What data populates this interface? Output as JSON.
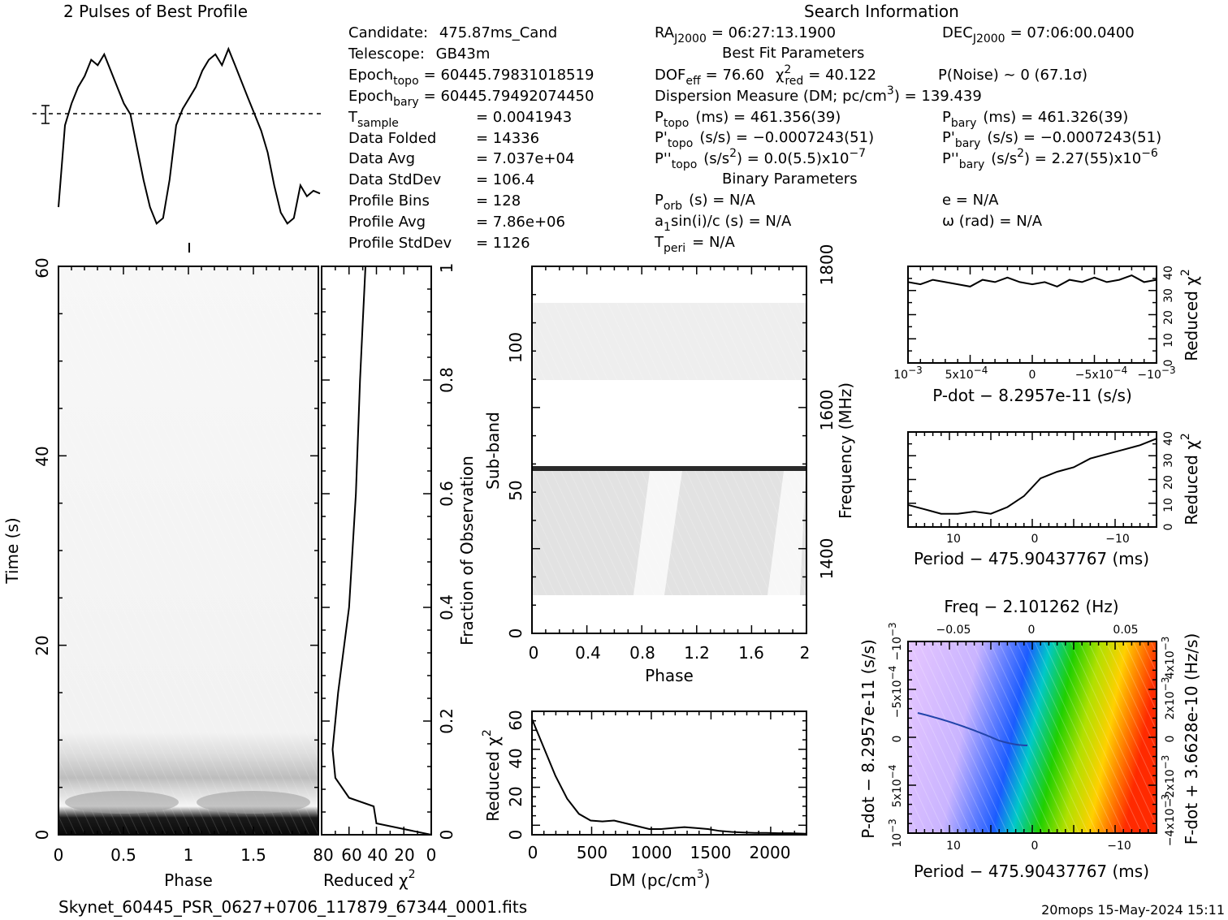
{
  "header": {
    "profile_title": "2 Pulses of Best Profile",
    "search_title": "Search Information",
    "best_fit_title": "Best Fit Parameters",
    "binary_title": "Binary Parameters",
    "footer_file": "Skynet_60445_PSR_0627+0706_117879_67344_0001.fits",
    "footer_stamp": "20mops 15-May-2024 15:11"
  },
  "info_left": [
    {
      "label": "Candidate:",
      "value": "475.87ms_Cand"
    },
    {
      "label": "Telescope:",
      "value": "GB43m"
    },
    {
      "label": "Epoch",
      "sub": "topo",
      "value": "= 60445.79831018519"
    },
    {
      "label": "Epoch",
      "sub": "bary",
      "value": "= 60445.79492074450"
    },
    {
      "label": "T",
      "sub": "sample",
      "value": "=   0.0041943"
    },
    {
      "label": "Data Folded",
      "value": "=   14336"
    },
    {
      "label": "Data Avg",
      "value": "=   7.037e+04"
    },
    {
      "label": "Data StdDev",
      "value": "=   106.4"
    },
    {
      "label": "Profile Bins",
      "value": "=   128"
    },
    {
      "label": "Profile Avg",
      "value": "=   7.86e+06"
    },
    {
      "label": "Profile StdDev",
      "value": "=   1126"
    }
  ],
  "search": {
    "ra": "RA",
    "ra_sub": "J2000",
    "ra_val": "= 06:27:13.1900",
    "dec": "DEC",
    "dec_sub": "J2000",
    "dec_val": "= 07:06:00.0400",
    "dof": "DOF",
    "dof_sub": "eff",
    "dof_val": "= 76.60",
    "chi": "χ",
    "chi_sup": "2",
    "chi_sub": "red",
    "chi_val": "= 40.122",
    "pnoise": "P(Noise) ~ 0    (67.1σ)",
    "dm": "Dispersion Measure (DM; pc/cm",
    "dm_sup": "3",
    "dm_val": ") = 139.439",
    "ptopo": "P",
    "ptopo_sub": "topo",
    "ptopo_val": "(ms) =  461.356(39)",
    "pbary": "P",
    "pbary_sub": "bary",
    "pbary_val": "(ms) =  461.326(39)",
    "pdtopo": "P'",
    "pdtopo_sub": "topo",
    "pdtopo_val": "(s/s) = −0.0007243(51)",
    "pdbary": "P'",
    "pdbary_sub": "bary",
    "pdbary_val": "(s/s) = −0.0007243(51)",
    "pddtopo": "P''",
    "pddtopo_sub": "topo",
    "pddtopo_val": "(s/s",
    "pddtopo_sup": "2",
    "pddtopo_val2": ") = 0.0(5.5)x10",
    "pddtopo_exp": "−7",
    "pddbary": "P''",
    "pddbary_sub": "bary",
    "pddbary_val": "(s/s",
    "pddbary_sup": "2",
    "pddbary_val2": ") =  2.27(55)x10",
    "pddbary_exp": "−6",
    "porb": "P",
    "porb_sub": "orb",
    "porb_val": "(s) = N/A",
    "ecc": "e = N/A",
    "asini": "a",
    "asini_sub": "1",
    "asini_val": "sin(i)/c (s) = N/A",
    "omega": "ω (rad) = N/A",
    "tperi": "T",
    "tperi_sub": "peri",
    "tperi_val": "= N/A"
  },
  "chart_data": [
    {
      "type": "line",
      "name": "pulse-profile",
      "title": "2 Pulses of Best Profile",
      "x": [
        0.0,
        0.05,
        0.1,
        0.15,
        0.2,
        0.25,
        0.3,
        0.35,
        0.4,
        0.45,
        0.5,
        0.55,
        0.6,
        0.65,
        0.7,
        0.75,
        0.8,
        0.85,
        0.9,
        0.95,
        1.0,
        1.05,
        1.1,
        1.15,
        1.2,
        1.25,
        1.3,
        1.35,
        1.4,
        1.45,
        1.5,
        1.55,
        1.6,
        1.65,
        1.7,
        1.75,
        1.8,
        1.85,
        1.9,
        1.95,
        2.0
      ],
      "y": [
        -1.3,
        0.2,
        0.6,
        0.9,
        1.1,
        1.4,
        1.3,
        1.5,
        1.2,
        0.9,
        0.6,
        0.4,
        -0.2,
        -0.8,
        -1.3,
        -1.6,
        -1.5,
        -0.8,
        0.2,
        0.5,
        0.7,
        0.9,
        1.2,
        1.4,
        1.5,
        1.3,
        1.6,
        1.3,
        1.0,
        0.7,
        0.4,
        0.1,
        -0.3,
        -0.9,
        -1.4,
        -1.6,
        -1.5,
        -0.9,
        -1.1,
        -1.0,
        -1.05
      ],
      "ylim": [
        -1.7,
        1.9
      ],
      "mean_line": 0.1
    },
    {
      "type": "heatmap",
      "name": "phase-time",
      "xlabel": "Phase",
      "ylabel": "Time (s)",
      "xlim": [
        0,
        2
      ],
      "ylim": [
        0,
        60
      ],
      "xticks": [
        0,
        0.5,
        1,
        1.5
      ],
      "yticks": [
        0,
        20,
        40,
        60
      ],
      "secondary_ylabel": "Fraction of Observation",
      "secondary_yticks": [
        0,
        0.2,
        0.4,
        0.6,
        0.8,
        1
      ]
    },
    {
      "type": "line",
      "name": "time-chi2",
      "xlabel": "Reduced χ",
      "xlabel_sup": "2",
      "xlim": [
        80,
        0
      ],
      "xticks": [
        80,
        60,
        40,
        20,
        0
      ],
      "ylim": [
        0,
        1
      ],
      "x": [
        0,
        40,
        42,
        60,
        70,
        72,
        68,
        60,
        55,
        52,
        50,
        48
      ],
      "y": [
        0.0,
        0.02,
        0.05,
        0.065,
        0.1,
        0.15,
        0.25,
        0.4,
        0.6,
        0.8,
        0.9,
        1.0
      ]
    },
    {
      "type": "heatmap",
      "name": "phase-subband",
      "xlabel": "Phase",
      "ylabel": "Sub-band",
      "xlim": [
        0,
        2
      ],
      "ylim": [
        0,
        128
      ],
      "xticks": [
        0,
        0.4,
        0.8,
        1.2,
        1.6,
        2
      ],
      "yticks": [
        0,
        50,
        100
      ],
      "secondary_ylabel": "Frequency (MHz)",
      "secondary_yticks": [
        1400,
        1600,
        1800
      ]
    },
    {
      "type": "line",
      "name": "dm-chi2",
      "xlabel": "DM (pc/cm",
      "xlabel_sup": "3",
      "ylabel": "Reduced χ",
      "ylabel_sup": "2",
      "xlim": [
        0,
        2340
      ],
      "ylim": [
        0,
        65
      ],
      "xticks": [
        0,
        500,
        1000,
        1500,
        2000
      ],
      "yticks": [
        0,
        20,
        40,
        60
      ],
      "x": [
        0,
        100,
        200,
        300,
        400,
        500,
        600,
        700,
        800,
        900,
        1000,
        1100,
        1200,
        1300,
        1400,
        1500,
        1600,
        1700,
        1800,
        1900,
        2000,
        2100,
        2200,
        2340
      ],
      "y": [
        61,
        46,
        31,
        19,
        11,
        7.5,
        7,
        7.5,
        6,
        4.5,
        3,
        3,
        3.5,
        4,
        3.5,
        3,
        2,
        1.5,
        1.2,
        1,
        1,
        0.8,
        0.8,
        0.5
      ]
    },
    {
      "type": "line",
      "name": "pdot-chi2",
      "xlabel": "P-dot − 8.2957e-11 (s/s)",
      "ylabel": "Reduced χ",
      "ylabel_sup": "2",
      "xlim": [
        0.001,
        -0.001
      ],
      "ylim": [
        0,
        43
      ],
      "yticks": [
        0,
        10,
        20,
        30,
        40
      ],
      "x": [
        0.001,
        0.0009,
        0.0008,
        0.0007,
        0.0006,
        0.0005,
        0.0004,
        0.0003,
        0.0002,
        0.0001,
        0.0,
        -0.0001,
        -0.0002,
        -0.0003,
        -0.0004,
        -0.0005,
        -0.0006,
        -0.0007,
        -0.0008,
        -0.0009,
        -0.001
      ],
      "y": [
        36,
        35,
        37,
        36,
        35,
        34,
        37,
        36,
        38,
        36,
        35,
        36,
        34,
        37,
        36,
        38,
        36,
        37,
        39,
        36,
        37
      ]
    },
    {
      "type": "line",
      "name": "period-chi2",
      "xlabel": "Period − 475.90437767 (ms)",
      "ylabel": "Reduced χ",
      "ylabel_sup": "2",
      "xlim": [
        15,
        -15
      ],
      "ylim": [
        0,
        43
      ],
      "xticks": [
        10,
        0,
        -10
      ],
      "yticks": [
        0,
        10,
        20,
        30,
        40
      ],
      "x": [
        15,
        13,
        11,
        9,
        7,
        5,
        3,
        1,
        0,
        -1,
        -3,
        -5,
        -7,
        -9,
        -11,
        -13,
        -15
      ],
      "y": [
        10,
        8,
        6,
        6,
        7,
        6,
        9,
        14,
        18,
        22,
        25,
        27,
        31,
        33,
        35,
        37,
        40
      ]
    },
    {
      "type": "heatmap",
      "name": "period-pdot",
      "title": "Freq − 2.101262 (Hz)",
      "xlabel": "Period − 475.90437767 (ms)",
      "ylabel": "P-dot − 8.2957e-11 (s/s)",
      "secondary_ylabel": "F-dot + 3.6628e-10 (Hz/s)",
      "xticks": [
        10,
        0,
        -10
      ],
      "top_xticks": [
        -0.05,
        0,
        0.05
      ],
      "colormap": [
        "#e8c8ff",
        "#c0a8ff",
        "#5a7cff",
        "#1060ff",
        "#00c8c8",
        "#00d000",
        "#a0e000",
        "#ffd000",
        "#ff7000",
        "#ff2000"
      ]
    }
  ],
  "ticks": {
    "phase_time_x": [
      "0",
      "0.5",
      "1",
      "1.5"
    ],
    "phase_time_y": [
      "0",
      "20",
      "40",
      "60"
    ],
    "chi_time_x": [
      "80",
      "60",
      "40",
      "20",
      "0"
    ],
    "frac_obs": [
      "0",
      "0.2",
      "0.4",
      "0.6",
      "0.8",
      "1"
    ],
    "subband_y": [
      "0",
      "50",
      "100"
    ],
    "subband_x": [
      "0",
      "0.4",
      "0.8",
      "1.2",
      "1.6",
      "2"
    ],
    "freq_y": [
      "1400",
      "1600",
      "1800"
    ],
    "dm_x": [
      "0",
      "500",
      "1000",
      "1500",
      "2000"
    ],
    "dm_y": [
      "0",
      "20",
      "40",
      "60"
    ],
    "pdot_x": [
      "10",
      "5x10",
      "0",
      "−5x10",
      "−10"
    ],
    "pdot_x_exp": [
      "−3",
      "−4",
      "",
      "−4",
      "−3"
    ],
    "chi_y": [
      "0",
      "10",
      "20",
      "30",
      "40"
    ],
    "period_x": [
      "10",
      "0",
      "−10"
    ],
    "freq_top": [
      "−0.05",
      "0",
      "0.05"
    ],
    "ppdot_left": [
      "10",
      "5x10",
      "0",
      "−5x10",
      "−10"
    ],
    "ppdot_left_exp": [
      "−3",
      "−4",
      "",
      "−4",
      "−3"
    ],
    "ppdot_right": [
      "−4x10",
      "−2x10",
      "0",
      "2x10",
      "4x10"
    ],
    "ppdot_right_exp": [
      "−3",
      "−3",
      "",
      "−3",
      "−3"
    ]
  },
  "axis_labels": {
    "phase": "Phase",
    "time": "Time (s)",
    "reduced_chi": "Reduced χ",
    "chi_sup": "2",
    "fraction": "Fraction of Observation",
    "subband": "Sub-band",
    "frequency": "Frequency (MHz)",
    "dm": "DM (pc/cm",
    "dm_sup": "3",
    "dm_close": ")",
    "pdot": "P-dot − 8.2957e-11 (s/s)",
    "period": "Period − 475.90437767 (ms)",
    "freq_top": "Freq − 2.101262 (Hz)",
    "pdot_left": "P-dot − 8.2957e-11 (s/s)",
    "fdot_right": "F-dot + 3.6628e-10 (Hz/s)"
  }
}
